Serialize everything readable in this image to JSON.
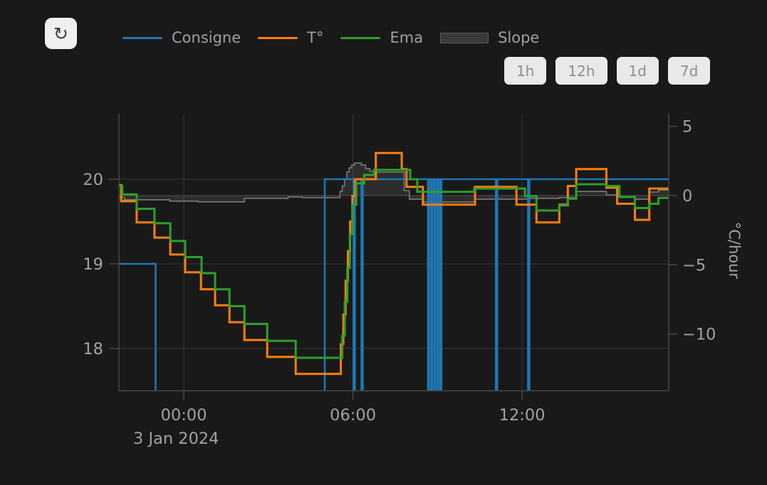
{
  "toolbar": {
    "refresh_icon": "↻"
  },
  "legend": {
    "text_color": "#a0a0a0",
    "items": [
      {
        "label": "Consigne",
        "color": "#1f77b4",
        "swatch": "line"
      },
      {
        "label": "T°",
        "color": "#ff7f0e",
        "swatch": "line"
      },
      {
        "label": "Ema",
        "color": "#2ca02c",
        "swatch": "line"
      },
      {
        "label": "Slope",
        "color": "#3a3a3a",
        "swatch": "area"
      }
    ]
  },
  "range_buttons": [
    {
      "label": "1h"
    },
    {
      "label": "12h"
    },
    {
      "label": "1d"
    },
    {
      "label": "7d"
    }
  ],
  "chart_data": {
    "type": "line",
    "title": "",
    "x_axis": {
      "tick_hours": [
        0,
        6,
        12
      ],
      "tick_labels": [
        "00:00",
        "06:00",
        "12:00"
      ],
      "date_label": "3 Jan 2024",
      "range_hours": [
        -2.3,
        17.2
      ]
    },
    "y_left": {
      "unit": "°C",
      "ticks": [
        20,
        19,
        18
      ],
      "tick_labels": [
        "20",
        "19",
        "18"
      ],
      "range": [
        17.5,
        20.773
      ],
      "grid": true
    },
    "y_right": {
      "title": "°C/hour",
      "ticks": [
        5,
        0,
        -5,
        -10
      ],
      "tick_labels": [
        "5",
        "0",
        "−5",
        "−10"
      ],
      "range": [
        -14.1,
        5.91
      ],
      "zeroline": true
    },
    "colors": {
      "grid": "#2e2e2e",
      "zeroline": "#3a3a3a",
      "axis_line": "#484848",
      "tick_text": "#a2a2a2"
    },
    "series": [
      {
        "name": "Consigne",
        "color": "#1f77b4",
        "axis": "left",
        "line_shape": "step",
        "width": 2.5,
        "points": [
          [
            -2.3,
            19
          ],
          [
            -1.0,
            17
          ],
          [
            5.0,
            20
          ],
          [
            6.02,
            17
          ],
          [
            6.07,
            20
          ],
          [
            6.3,
            17
          ],
          [
            6.35,
            20
          ],
          [
            8.66,
            17
          ],
          [
            8.7,
            20
          ],
          [
            8.77,
            17
          ],
          [
            8.81,
            20
          ],
          [
            8.88,
            17
          ],
          [
            8.92,
            20
          ],
          [
            8.99,
            17
          ],
          [
            9.03,
            20
          ],
          [
            9.1,
            17
          ],
          [
            9.14,
            20
          ],
          [
            11.07,
            17
          ],
          [
            11.12,
            20
          ],
          [
            12.21,
            17
          ],
          [
            12.26,
            20
          ]
        ]
      },
      {
        "name": "T°",
        "color": "#ff7f0e",
        "axis": "left",
        "line_shape": "step",
        "width": 3,
        "points": [
          [
            -2.3,
            19.93
          ],
          [
            -2.22,
            19.74
          ],
          [
            -1.67,
            19.49
          ],
          [
            -1.04,
            19.31
          ],
          [
            -0.48,
            19.11
          ],
          [
            0.05,
            18.9
          ],
          [
            0.61,
            18.7
          ],
          [
            1.11,
            18.51
          ],
          [
            1.62,
            18.31
          ],
          [
            2.15,
            18.1
          ],
          [
            2.96,
            17.9
          ],
          [
            3.97,
            17.7
          ],
          [
            5.57,
            18.05
          ],
          [
            5.66,
            18.4
          ],
          [
            5.74,
            18.8
          ],
          [
            5.82,
            19.15
          ],
          [
            5.9,
            19.5
          ],
          [
            5.98,
            19.8
          ],
          [
            6.08,
            20.0
          ],
          [
            6.81,
            20.31
          ],
          [
            7.73,
            20.12
          ],
          [
            7.9,
            19.91
          ],
          [
            8.48,
            19.7
          ],
          [
            10.33,
            19.91
          ],
          [
            11.8,
            19.7
          ],
          [
            12.51,
            19.49
          ],
          [
            13.32,
            19.7
          ],
          [
            13.62,
            19.92
          ],
          [
            13.92,
            20.12
          ],
          [
            14.99,
            19.9
          ],
          [
            15.37,
            19.71
          ],
          [
            16.0,
            19.52
          ],
          [
            16.51,
            19.89
          ]
        ]
      },
      {
        "name": "Ema",
        "color": "#2ca02c",
        "axis": "left",
        "line_shape": "step",
        "width": 3,
        "points": [
          [
            -2.3,
            19.92
          ],
          [
            -2.18,
            19.82
          ],
          [
            -1.67,
            19.65
          ],
          [
            -1.04,
            19.48
          ],
          [
            -0.48,
            19.27
          ],
          [
            0.05,
            19.08
          ],
          [
            0.63,
            18.89
          ],
          [
            1.11,
            18.7
          ],
          [
            1.62,
            18.5
          ],
          [
            2.15,
            18.29
          ],
          [
            2.96,
            18.09
          ],
          [
            3.97,
            17.89
          ],
          [
            5.62,
            18.15
          ],
          [
            5.71,
            18.55
          ],
          [
            5.8,
            18.95
          ],
          [
            5.89,
            19.35
          ],
          [
            5.98,
            19.7
          ],
          [
            6.12,
            19.95
          ],
          [
            6.4,
            20.05
          ],
          [
            6.75,
            20.11
          ],
          [
            8.03,
            20.0
          ],
          [
            8.28,
            19.85
          ],
          [
            10.3,
            19.89
          ],
          [
            12.1,
            19.8
          ],
          [
            12.51,
            19.63
          ],
          [
            13.32,
            19.69
          ],
          [
            13.62,
            19.77
          ],
          [
            13.92,
            19.94
          ],
          [
            15.0,
            19.92
          ],
          [
            15.45,
            19.79
          ],
          [
            16.0,
            19.66
          ],
          [
            16.51,
            19.71
          ],
          [
            16.84,
            19.78
          ]
        ]
      },
      {
        "name": "Slope",
        "color": "#7a7a7a",
        "fill": "rgba(120,120,120,0.22)",
        "axis": "right",
        "line_shape": "step",
        "width": 1.6,
        "area": true,
        "points": [
          [
            -2.3,
            -0.15
          ],
          [
            -2.1,
            -0.3
          ],
          [
            -0.5,
            -0.4
          ],
          [
            0.5,
            -0.45
          ],
          [
            2.15,
            -0.2
          ],
          [
            3.7,
            -0.1
          ],
          [
            4.2,
            -0.15
          ],
          [
            5.54,
            0.3
          ],
          [
            5.62,
            0.7
          ],
          [
            5.7,
            1.2
          ],
          [
            5.78,
            1.7
          ],
          [
            5.86,
            2.0
          ],
          [
            5.95,
            2.2
          ],
          [
            6.05,
            2.35
          ],
          [
            6.3,
            2.2
          ],
          [
            6.45,
            1.95
          ],
          [
            6.6,
            1.75
          ],
          [
            6.8,
            1.7
          ],
          [
            7.82,
            0.36
          ],
          [
            8.0,
            -0.26
          ],
          [
            8.48,
            -0.47
          ],
          [
            10.33,
            -0.26
          ],
          [
            12.2,
            -0.2
          ],
          [
            13.32,
            -0.15
          ],
          [
            13.92,
            0.3
          ],
          [
            14.99,
            0.05
          ],
          [
            15.42,
            -0.1
          ],
          [
            16.0,
            -0.26
          ],
          [
            16.51,
            0.26
          ],
          [
            16.84,
            0.4
          ]
        ]
      }
    ]
  }
}
